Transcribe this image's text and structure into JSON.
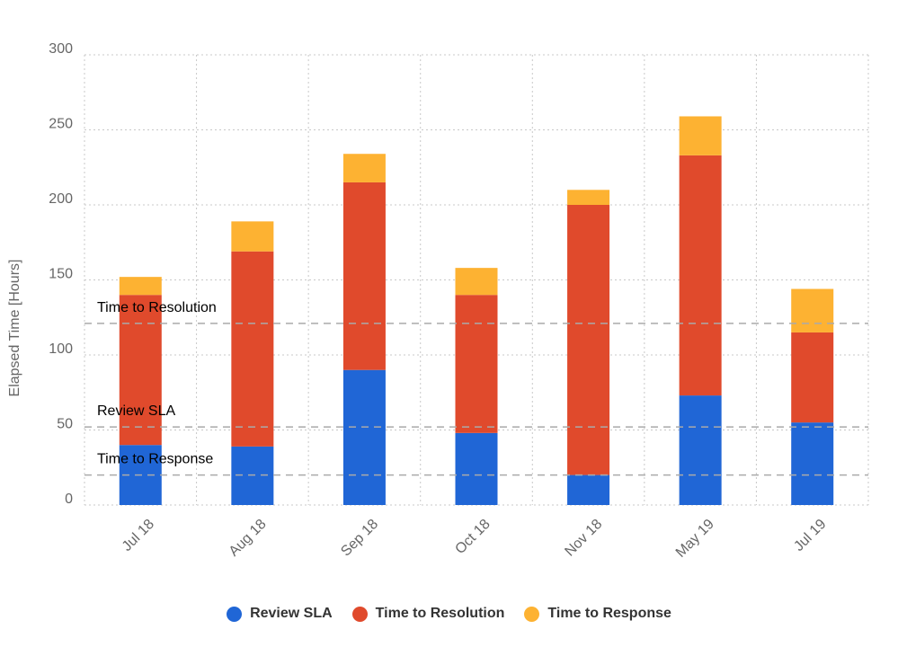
{
  "chart_data": {
    "type": "bar",
    "stacked": true,
    "categories": [
      "Jul 18",
      "Aug 18",
      "Sep 18",
      "Oct 18",
      "Nov 18",
      "May 19",
      "Jul 19"
    ],
    "series": [
      {
        "name": "Review SLA",
        "color": "#2066d6",
        "values": [
          40,
          39,
          90,
          48,
          20,
          73,
          55
        ]
      },
      {
        "name": "Time to Resolution",
        "color": "#e04a2c",
        "values": [
          100,
          130,
          125,
          92,
          180,
          160,
          60
        ]
      },
      {
        "name": "Time to Response",
        "color": "#fdb232",
        "values": [
          12,
          20,
          19,
          18,
          10,
          26,
          29
        ]
      }
    ],
    "reference_lines": [
      {
        "label": "Time to Resolution",
        "value": 121
      },
      {
        "label": "Review SLA",
        "value": 52
      },
      {
        "label": "Time to Response",
        "value": 20
      }
    ],
    "yticks": [
      "0",
      "50",
      "100",
      "150",
      "200",
      "250",
      "300"
    ],
    "ylim": [
      0,
      300
    ],
    "ylabel": "Elapsed Time [Hours]",
    "xlabel": "",
    "grid": true,
    "legend_position": "bottom"
  }
}
